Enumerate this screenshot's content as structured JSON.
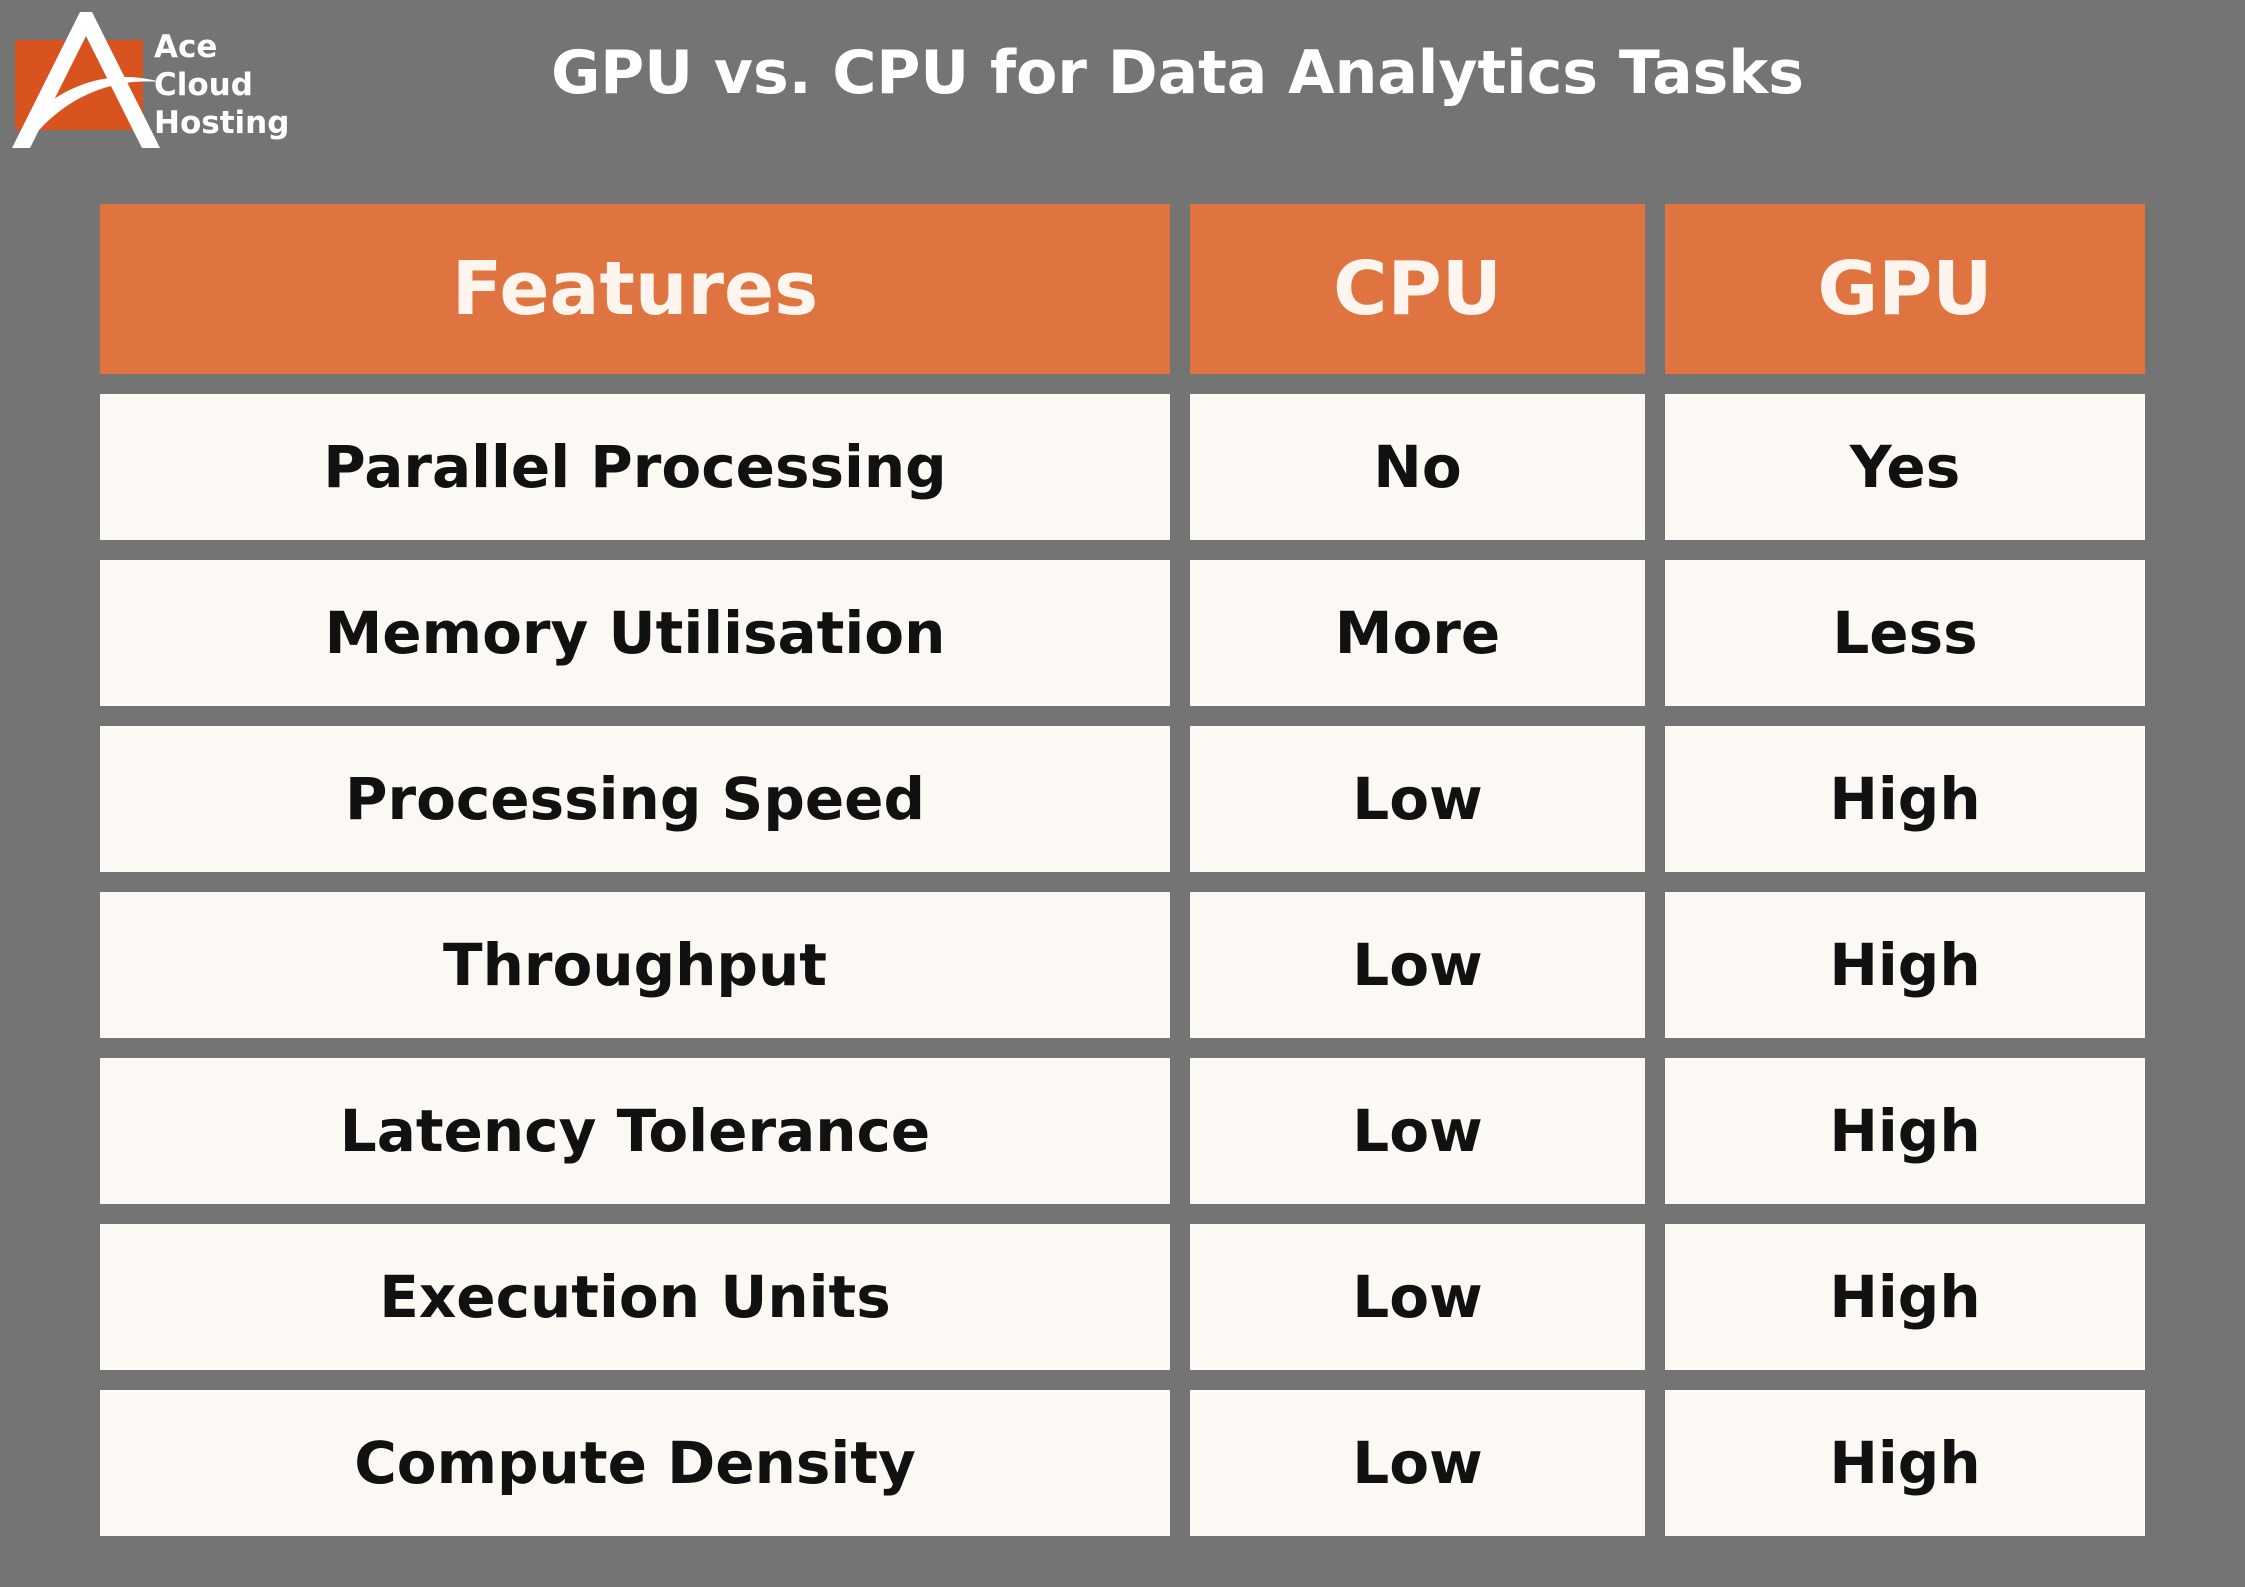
{
  "brand": {
    "name_lines": [
      "Ace",
      "Cloud",
      "Hosting"
    ],
    "accent_color": "#d9531e",
    "logo_icon": "stylized-a-logo-icon"
  },
  "title": "GPU vs. CPU for Data Analytics Tasks",
  "colors": {
    "background": "#747474",
    "header_fill": "#df7440",
    "cell_fill": "#fcf8f4",
    "cell_text": "#111111",
    "header_text": "#fdf5ee"
  },
  "table": {
    "headers": [
      "Features",
      "CPU",
      "GPU"
    ],
    "rows": [
      [
        "Parallel Processing",
        "No",
        "Yes"
      ],
      [
        "Memory Utilisation",
        "More",
        "Less"
      ],
      [
        "Processing Speed",
        "Low",
        "High"
      ],
      [
        "Throughput",
        "Low",
        "High"
      ],
      [
        "Latency Tolerance",
        "Low",
        "High"
      ],
      [
        "Execution Units",
        "Low",
        "High"
      ],
      [
        "Compute Density",
        "Low",
        "High"
      ]
    ]
  }
}
